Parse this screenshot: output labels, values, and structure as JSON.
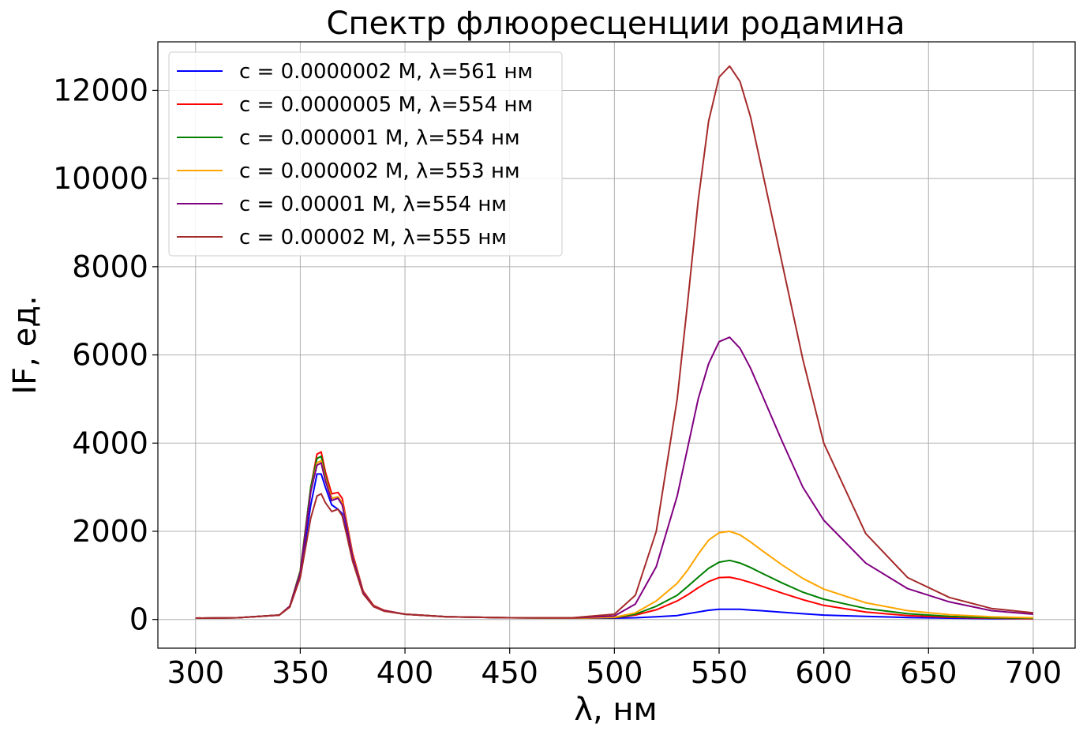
{
  "chart_data": {
    "type": "line",
    "title": "Спектр флюоресценции родамина",
    "xlabel": "λ, нм",
    "ylabel": "IF, ед.",
    "xlim": [
      282,
      720
    ],
    "ylim": [
      -650,
      13100
    ],
    "xticks": [
      300,
      350,
      400,
      450,
      500,
      550,
      600,
      650,
      700
    ],
    "yticks": [
      0,
      2000,
      4000,
      6000,
      8000,
      10000,
      12000
    ],
    "grid": true,
    "legend_position": "top-left",
    "x": [
      300,
      320,
      340,
      345,
      350,
      355,
      358,
      360,
      362,
      365,
      368,
      370,
      372,
      375,
      380,
      385,
      390,
      400,
      420,
      450,
      480,
      500,
      510,
      520,
      530,
      535,
      540,
      545,
      550,
      555,
      560,
      565,
      570,
      580,
      590,
      600,
      620,
      640,
      660,
      680,
      700
    ],
    "series": [
      {
        "name": "c = 0.0000002 M, λ=561 нм",
        "color": "#0000ff",
        "values": [
          30,
          40,
          100,
          300,
          1000,
          2600,
          3300,
          3300,
          3000,
          2600,
          2500,
          2400,
          2000,
          1400,
          600,
          300,
          200,
          120,
          60,
          40,
          30,
          30,
          40,
          60,
          90,
          130,
          170,
          210,
          230,
          230,
          230,
          215,
          200,
          165,
          130,
          100,
          70,
          45,
          30,
          20,
          20
        ]
      },
      {
        "name": "c = 0.0000005 M, λ=554 нм",
        "color": "#ff0000",
        "values": [
          30,
          40,
          100,
          300,
          1100,
          3000,
          3750,
          3800,
          3350,
          2850,
          2880,
          2750,
          2250,
          1500,
          650,
          320,
          210,
          120,
          60,
          40,
          30,
          40,
          100,
          220,
          420,
          560,
          720,
          860,
          950,
          960,
          910,
          840,
          760,
          600,
          450,
          320,
          170,
          90,
          50,
          30,
          20
        ]
      },
      {
        "name": "c = 0.000001 M, λ=554 нм",
        "color": "#008000",
        "values": [
          30,
          40,
          100,
          300,
          1100,
          3000,
          3650,
          3700,
          3250,
          2750,
          2780,
          2650,
          2200,
          1450,
          630,
          310,
          200,
          120,
          60,
          40,
          30,
          45,
          120,
          300,
          550,
          750,
          960,
          1160,
          1300,
          1340,
          1280,
          1180,
          1060,
          830,
          620,
          460,
          250,
          130,
          70,
          40,
          30
        ]
      },
      {
        "name": "c = 0.000002 M, λ=553 нм",
        "color": "#ffa500",
        "values": [
          30,
          40,
          100,
          300,
          1050,
          2900,
          3550,
          3600,
          3200,
          2750,
          2780,
          2650,
          2200,
          1450,
          630,
          310,
          200,
          120,
          60,
          40,
          30,
          50,
          150,
          420,
          820,
          1120,
          1480,
          1800,
          1970,
          2000,
          1920,
          1760,
          1580,
          1240,
          930,
          690,
          380,
          200,
          110,
          60,
          40
        ]
      },
      {
        "name": "c = 0.00001 M, λ=554 нм",
        "color": "#800080",
        "values": [
          30,
          40,
          100,
          300,
          1050,
          2900,
          3500,
          3550,
          3150,
          2700,
          2750,
          2600,
          2150,
          1420,
          620,
          300,
          200,
          120,
          60,
          40,
          35,
          80,
          350,
          1200,
          2800,
          3900,
          5000,
          5800,
          6300,
          6400,
          6150,
          5700,
          5150,
          4050,
          3000,
          2250,
          1280,
          700,
          400,
          200,
          120
        ]
      },
      {
        "name": "c = 0.00002 M, λ=555 нм",
        "color": "#a52a2a",
        "values": [
          30,
          40,
          100,
          280,
          950,
          2300,
          2800,
          2850,
          2650,
          2450,
          2500,
          2350,
          1950,
          1320,
          580,
          290,
          190,
          120,
          60,
          40,
          40,
          120,
          550,
          2000,
          5000,
          7200,
          9500,
          11300,
          12300,
          12550,
          12200,
          11400,
          10300,
          8100,
          5900,
          4000,
          1950,
          950,
          500,
          250,
          150
        ]
      }
    ]
  }
}
